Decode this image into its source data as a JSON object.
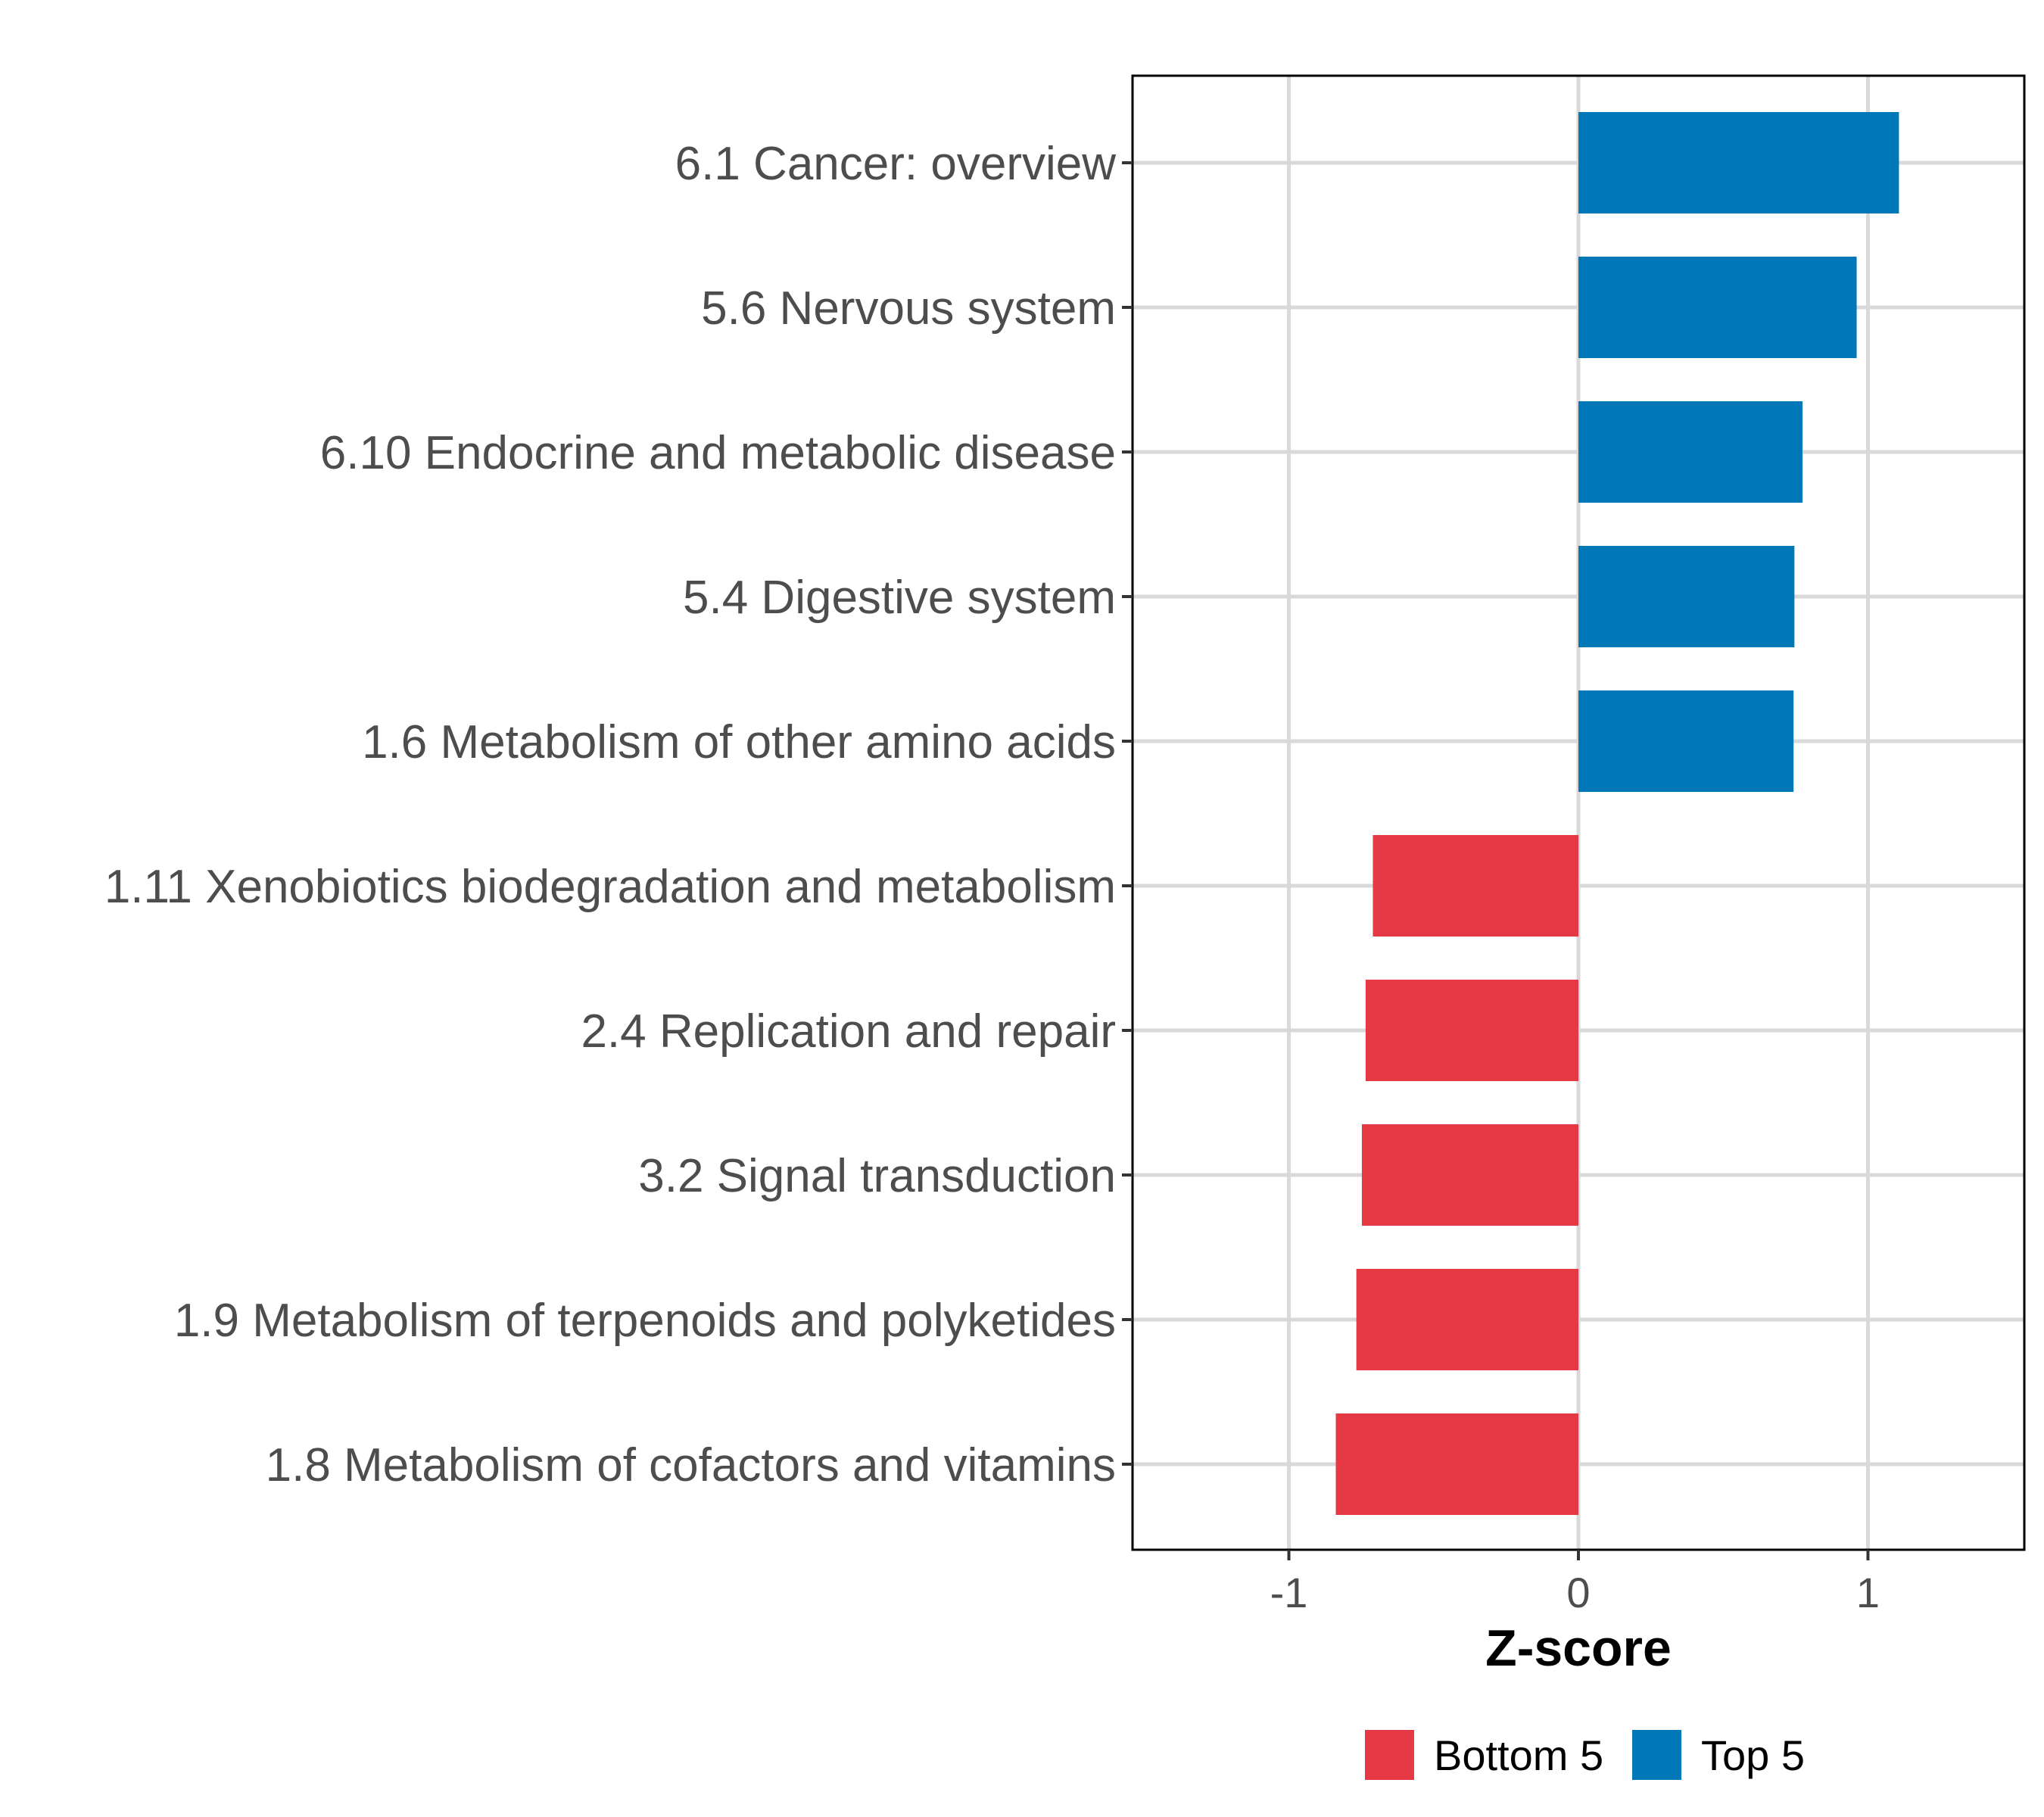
{
  "chart_data": {
    "type": "bar",
    "orientation": "horizontal",
    "title": "",
    "xlabel": "Z-score",
    "ylabel": "",
    "xlim": [
      -1.54,
      1.54
    ],
    "xticks": [
      -1,
      0,
      1
    ],
    "xtick_labels": [
      "-1",
      "0",
      "1"
    ],
    "grid": true,
    "legend_position": "bottom",
    "categories": [
      "6.1 Cancer: overview",
      "5.6 Nervous system",
      "6.10 Endocrine and metabolic disease",
      "5.4 Digestive system",
      "1.6 Metabolism of other amino acids",
      "1.11 Xenobiotics biodegradation and metabolism",
      "2.4 Replication and repair",
      "3.2 Signal transduction",
      "1.9 Metabolism of terpenoids and polyketides",
      "1.8 Metabolism of cofactors and vitamins"
    ],
    "values": [
      1.107,
      0.961,
      0.774,
      0.746,
      0.743,
      -0.71,
      -0.735,
      -0.748,
      -0.767,
      -0.838
    ],
    "groups": [
      "Top 5",
      "Top 5",
      "Top 5",
      "Top 5",
      "Top 5",
      "Bottom 5",
      "Bottom 5",
      "Bottom 5",
      "Bottom 5",
      "Bottom 5"
    ],
    "legend": [
      {
        "label": "Bottom 5",
        "color": "#E63946"
      },
      {
        "label": "Top 5",
        "color": "#0077B6"
      }
    ]
  }
}
